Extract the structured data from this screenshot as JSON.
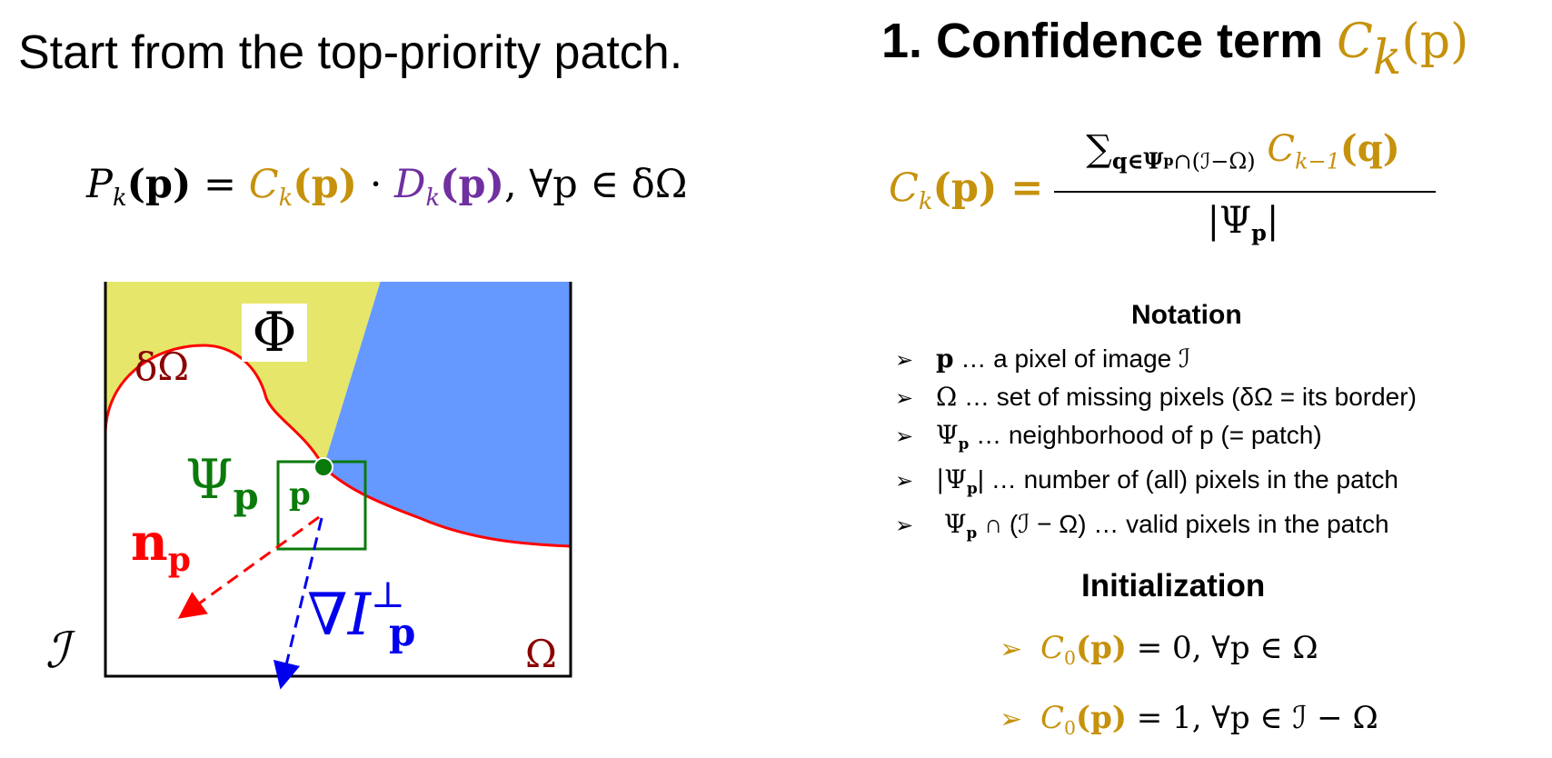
{
  "left": {
    "title": "Start from the top-priority patch.",
    "priority_equation": {
      "lhs": "P",
      "lhs_sub": "k",
      "lhs_arg": "(p)",
      "eq": " = ",
      "conf": "C",
      "conf_sub": "k",
      "conf_arg": "(p)",
      "dot": " · ",
      "data": "D",
      "data_sub": "k",
      "data_arg": "(p)",
      "tail": ", ∀p ∈ δΩ"
    }
  },
  "diagram": {
    "phi_label": "Φ",
    "border_label": "δΩ",
    "patch_label": "Ψ",
    "patch_sub": "p",
    "point_label": "p",
    "normal_label": "n",
    "normal_sub": "p",
    "isophote_label": "∇I",
    "isophote_sup": "⊥",
    "isophote_sub": "p",
    "image_label": "ℐ",
    "missing_label": "Ω",
    "colors": {
      "source_yellow": "#E6E66A",
      "source_blue": "#6699FF",
      "border_red": "#FF0000",
      "patch_green": "#0A7A0A",
      "isophote_blue": "#0000EE",
      "missing_dark_red": "#8B0000"
    }
  },
  "right": {
    "title": "1. Confidence term ",
    "title_sym": "C",
    "title_sub": "k",
    "title_arg": "(p)",
    "confidence_equation": {
      "lhs": "C",
      "lhs_sub": "k",
      "lhs_arg": "(p) =",
      "sum": "∑",
      "sum_sub": "q∈Ψ",
      "sum_subsub": "p",
      "sum_sub_tail": "∩(ℐ−Ω)",
      "num_term": " C",
      "num_term_sub": "k−1",
      "num_term_arg": "(q)",
      "den": "|Ψ",
      "den_sub": "p",
      "den_close": "|"
    },
    "notation_heading": "Notation",
    "notation": [
      {
        "sym": "p",
        "text": " … a pixel of image ℐ"
      },
      {
        "sym": "Ω",
        "text": " … set of missing pixels (δΩ = its border)"
      },
      {
        "sym": "Ψ",
        "sub": "p",
        "text": " … neighborhood of p (= patch)"
      },
      {
        "sym": "|Ψ",
        "sub": "p",
        "text": "| … number of (all) pixels in the patch"
      },
      {
        "sym": " Ψ",
        "sub": "p",
        "text": " ∩ (ℐ − Ω) … valid pixels in the patch"
      }
    ],
    "bullet": "➢",
    "initialization_heading": "Initialization",
    "initialization": [
      {
        "sym": "C",
        "sub": "0",
        "arg": "(p)",
        "text": " = 0, ∀p ∈ Ω"
      },
      {
        "sym": "C",
        "sub": "0",
        "arg": "(p)",
        "text": " = 1, ∀p ∈ ℐ − Ω"
      }
    ]
  }
}
